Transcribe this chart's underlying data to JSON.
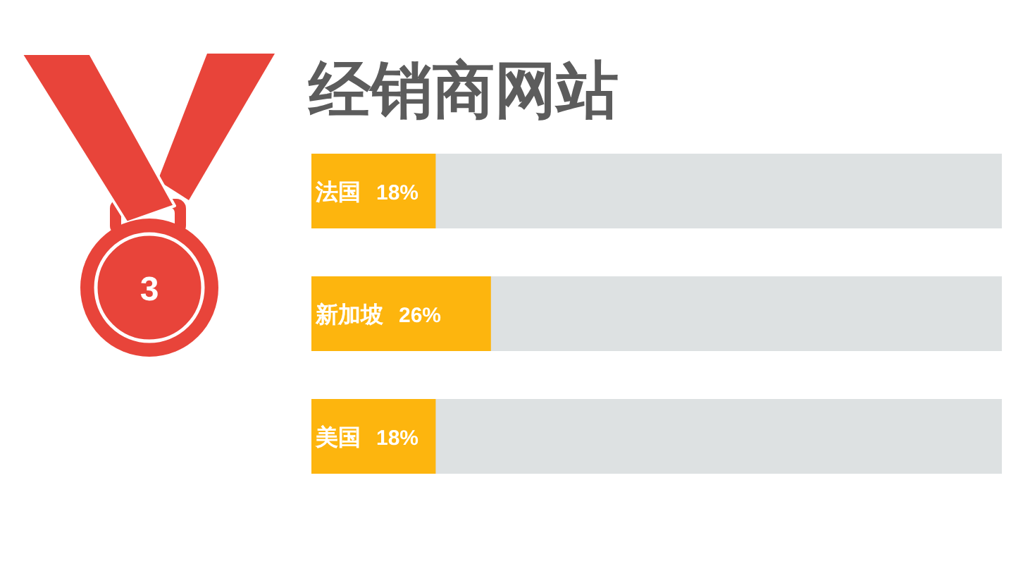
{
  "chart_data": {
    "type": "bar",
    "orientation": "horizontal",
    "title": "经销商网站",
    "categories": [
      "法国",
      "新加坡",
      "美国"
    ],
    "values": [
      18,
      26,
      18
    ],
    "value_labels": [
      "18%",
      "26%",
      "18%"
    ],
    "color": "#fdb50e",
    "xlim": [
      0,
      100
    ],
    "tick_labels": "y",
    "annotations": [
      "3"
    ]
  }
}
